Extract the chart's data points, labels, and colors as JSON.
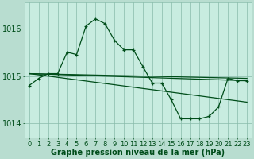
{
  "title": "Graphe pression niveau de la mer (hPa)",
  "background_color": "#b8ddd0",
  "plot_bg_color": "#c8ece0",
  "grid_color": "#88bbaa",
  "line_color": "#004d1a",
  "ylim": [
    1013.7,
    1016.55
  ],
  "yticks": [
    1014,
    1015,
    1016
  ],
  "xlim": [
    -0.5,
    23.5
  ],
  "xticks": [
    0,
    1,
    2,
    3,
    4,
    5,
    6,
    7,
    8,
    9,
    10,
    11,
    12,
    13,
    14,
    15,
    16,
    17,
    18,
    19,
    20,
    21,
    22,
    23
  ],
  "trend1_x": [
    0,
    23
  ],
  "trend1_y": [
    1015.05,
    1014.45
  ],
  "trend2_x": [
    0,
    23
  ],
  "trend2_y": [
    1015.05,
    1014.9
  ],
  "trend3_x": [
    0,
    23
  ],
  "trend3_y": [
    1015.05,
    1014.95
  ],
  "series_x": [
    0,
    1,
    2,
    3,
    4,
    5,
    6,
    7,
    8,
    9,
    10,
    11,
    12,
    13,
    14,
    15,
    16,
    17,
    18,
    19,
    20,
    21,
    22,
    23
  ],
  "series_y": [
    1014.8,
    1014.95,
    1015.05,
    1015.05,
    1015.5,
    1015.45,
    1016.05,
    1016.2,
    1016.1,
    1015.75,
    1015.55,
    1015.55,
    1015.2,
    1014.85,
    1014.85,
    1014.5,
    1014.1,
    1014.1,
    1014.1,
    1014.15,
    1014.35,
    1014.95,
    1014.9,
    1014.9
  ],
  "title_color": "#004d1a",
  "tick_color": "#004d1a",
  "label_fontsize": 6.0,
  "title_fontsize": 7.0
}
